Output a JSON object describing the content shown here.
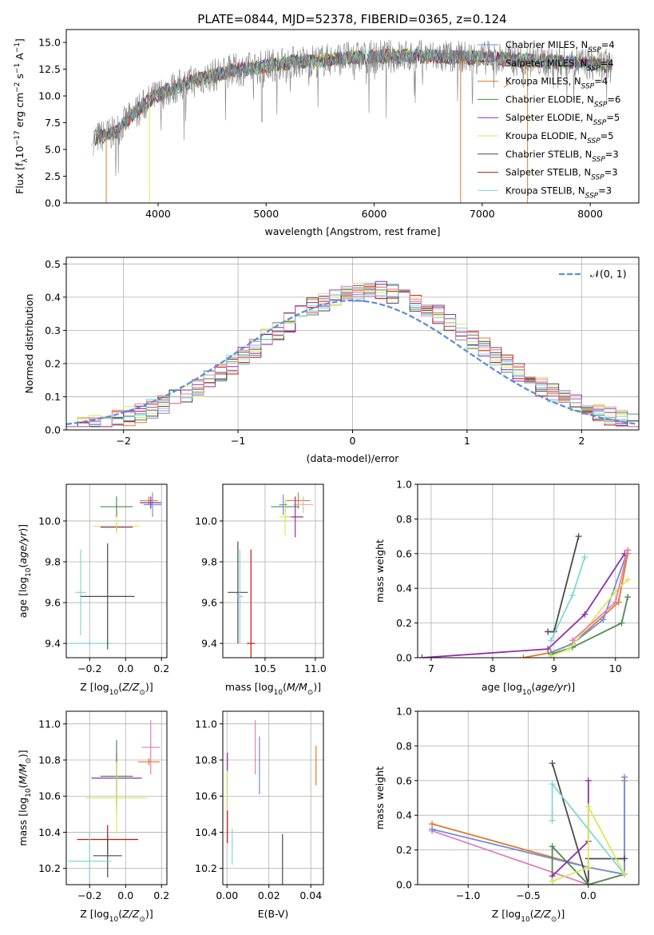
{
  "figure_title": "PLATE=0844, MJD=52378, FIBERID=0365, z=0.124",
  "colors": {
    "Chabrier MILES": "#6f8fd8",
    "Salpeter MILES": "#d7b8c0",
    "Kroupa MILES": "#e07a27",
    "Chabrier ELODIE": "#4f8a4f",
    "Salpeter ELODIE": "#8e2fa8",
    "Kroupa ELODIE": "#dbe85a",
    "Chabrier STELIB": "#4a4a4a",
    "Salpeter STELIB": "#cc1111",
    "Kroupa STELIB": "#7ed8d6",
    "pink": "#e27fb8",
    "normal": "#5b8bd8"
  },
  "chart_data": [
    {
      "id": "spectrum",
      "type": "line",
      "title": "PLATE=0844, MJD=52378, FIBERID=0365, z=0.124",
      "xlabel": "wavelength [Angstrom, rest frame]",
      "ylabel": "Flux [f_λ10^{-17} erg cm^{-2} s^{-1} A^{-1}]",
      "xlim": [
        3150,
        8450
      ],
      "ylim": [
        0,
        16.2
      ],
      "xticks": [
        4000,
        5000,
        6000,
        7000,
        8000
      ],
      "yticks": [
        0.0,
        2.5,
        5.0,
        7.5,
        10.0,
        12.5,
        15.0
      ],
      "legend_position": "top-right",
      "legend": [
        {
          "main": "Chabrier MILES, N",
          "sub": "SSP",
          "tail": "=4"
        },
        {
          "main": "Salpeter MILES, N",
          "sub": "SSP",
          "tail": "=4"
        },
        {
          "main": "Kroupa MILES, N",
          "sub": "SSP",
          "tail": "=4"
        },
        {
          "main": "Chabrier ELODIE, N",
          "sub": "SSP",
          "tail": "=6"
        },
        {
          "main": "Salpeter ELODIE, N",
          "sub": "SSP",
          "tail": "=5"
        },
        {
          "main": "Kroupa ELODIE, N",
          "sub": "SSP",
          "tail": "=5"
        },
        {
          "main": "Chabrier STELIB, N",
          "sub": "SSP",
          "tail": "=3"
        },
        {
          "main": "Salpeter STELIB, N",
          "sub": "SSP",
          "tail": "=3"
        },
        {
          "main": "Kroupa STELIB, N",
          "sub": "SSP",
          "tail": "=3"
        }
      ],
      "continuum": {
        "x": [
          3400,
          3600,
          3800,
          3950,
          4100,
          4300,
          4500,
          4700,
          4900,
          5100,
          5300,
          5500,
          5700,
          5900,
          6100,
          6300,
          6500,
          6700,
          6900,
          7100,
          7300,
          7500,
          7700,
          7900,
          8100,
          8200
        ],
        "y": [
          6.0,
          6.6,
          8.6,
          9.8,
          10.6,
          11.3,
          11.9,
          12.4,
          12.6,
          13.0,
          13.2,
          13.3,
          13.5,
          13.6,
          13.7,
          13.7,
          13.7,
          13.6,
          13.6,
          13.5,
          13.4,
          13.3,
          13.2,
          13.1,
          12.9,
          12.8
        ]
      }
    },
    {
      "id": "residuals",
      "type": "line",
      "xlabel": "(data-model)/error",
      "ylabel": "Normed distribution",
      "xlim": [
        -2.5,
        2.5
      ],
      "ylim": [
        0,
        0.52
      ],
      "xticks": [
        -2,
        -1,
        0,
        1,
        2
      ],
      "yticks": [
        0.0,
        0.1,
        0.2,
        0.3,
        0.4,
        0.5
      ],
      "legend_position": "top-right",
      "legend": [
        {
          "name": "𝒩(0, 1)"
        }
      ],
      "normal_curve": {
        "mu": 0,
        "sigma": 1,
        "peak": 0.39
      }
    },
    {
      "id": "age_vs_Z",
      "type": "scatter",
      "xlabel": "Z [log10(Z/Z⊙)]",
      "ylabel": "age  [log10(age/yr)]",
      "xlim": [
        -0.33,
        0.23
      ],
      "ylim": [
        9.33,
        10.18
      ],
      "xticks": [
        -0.2,
        0.0,
        0.2
      ],
      "yticks": [
        9.4,
        9.6,
        9.8,
        10.0
      ],
      "errorbars": [
        {
          "series": "Kroupa MILES",
          "x": 0.13,
          "xerr": 0.05,
          "y": 10.1,
          "yerr": 0.02
        },
        {
          "series": "Chabrier MILES",
          "x": 0.15,
          "xerr": 0.05,
          "y": 10.08,
          "yerr": 0.06
        },
        {
          "series": "Salpeter ELODIE",
          "x": 0.14,
          "xerr": 0.06,
          "y": 10.09,
          "yerr": 0.03
        },
        {
          "series": "Chabrier ELODIE",
          "x": -0.05,
          "xerr": 0.09,
          "y": 10.07,
          "yerr": 0.05
        },
        {
          "series": "Salpeter ELODIE",
          "x": -0.05,
          "xerr": 0.09,
          "y": 9.97,
          "yerr": 0.02
        },
        {
          "series": "Kroupa ELODIE",
          "x": -0.05,
          "xerr": 0.13,
          "y": 9.975,
          "yerr": 0.04
        },
        {
          "series": "Kroupa STELIB",
          "x": -0.25,
          "xerr": 0.03,
          "y": 9.65,
          "yerr": 0.21
        },
        {
          "series": "Kroupa STELIB",
          "x": -0.2,
          "xerr": 0.12,
          "y": 9.4,
          "yerr": 0.01
        },
        {
          "series": "Chabrier STELIB",
          "x": -0.1,
          "xerr": 0.15,
          "y": 9.63,
          "yerr": 0.26
        }
      ]
    },
    {
      "id": "age_vs_mass",
      "type": "scatter",
      "xlabel": "mass [log10(M/M⊙)]",
      "xlim": [
        10.08,
        11.08
      ],
      "ylim": [
        9.33,
        10.18
      ],
      "xticks": [
        10.5,
        11.0
      ],
      "yticks": [
        9.4,
        9.6,
        9.8,
        10.0
      ],
      "errorbars": [
        {
          "series": "Kroupa MILES",
          "x": 10.83,
          "xerr": 0.12,
          "y": 10.1,
          "yerr": 0.04
        },
        {
          "series": "Salpeter MILES",
          "x": 10.88,
          "xerr": 0.1,
          "y": 10.08,
          "yerr": 0.04
        },
        {
          "series": "Chabrier ELODIE",
          "x": 10.7,
          "xerr": 0.14,
          "y": 10.07,
          "yerr": 0.03
        },
        {
          "series": "Salpeter ELODIE",
          "x": 10.8,
          "xerr": 0.08,
          "y": 10.02,
          "yerr": 0.1
        },
        {
          "series": "Kroupa ELODIE",
          "x": 10.7,
          "xerr": 0.06,
          "y": 10.02,
          "yerr": 0.09
        },
        {
          "series": "Chabrier MILES",
          "x": 10.68,
          "xerr": 0.04,
          "y": 10.08,
          "yerr": 0.05
        },
        {
          "series": "Chabrier STELIB",
          "x": 10.23,
          "xerr": 0.1,
          "y": 9.65,
          "yerr": 0.25
        },
        {
          "series": "Kroupa STELIB",
          "x": 10.25,
          "xerr": 0.03,
          "y": 9.63,
          "yerr": 0.23
        },
        {
          "series": "Salpeter STELIB",
          "x": 10.36,
          "xerr": 0.04,
          "y": 9.4,
          "yerr": 0.46
        }
      ]
    },
    {
      "id": "massweight_vs_age",
      "type": "line",
      "xlabel": "age  [log10(age/yr)]",
      "ylabel": "mass weight",
      "xlim": [
        6.78,
        10.38
      ],
      "ylim": [
        0,
        1.0
      ],
      "xticks": [
        7,
        8,
        9,
        10
      ],
      "yticks": [
        0.0,
        0.2,
        0.4,
        0.6,
        0.8,
        1.0
      ],
      "series": [
        {
          "name": "Salpeter ELODIE",
          "x": [
            6.85,
            8.9,
            9.5,
            10.15
          ],
          "y": [
            0.0,
            0.05,
            0.25,
            0.6
          ]
        },
        {
          "name": "Chabrier STELIB",
          "x": [
            8.9,
            9.0,
            9.4
          ],
          "y": [
            0.15,
            0.15,
            0.7
          ]
        },
        {
          "name": "Kroupa STELIB",
          "x": [
            8.95,
            9.3,
            9.5
          ],
          "y": [
            0.1,
            0.36,
            0.58
          ]
        },
        {
          "name": "Kroupa MILES",
          "x": [
            8.5,
            8.95,
            9.3,
            10.05,
            10.2
          ],
          "y": [
            0.0,
            0.03,
            0.08,
            0.32,
            0.6
          ]
        },
        {
          "name": "Chabrier MILES",
          "x": [
            8.95,
            9.3,
            9.8,
            10.2
          ],
          "y": [
            0.03,
            0.08,
            0.22,
            0.62
          ]
        },
        {
          "name": "Chabrier ELODIE",
          "x": [
            8.95,
            9.3,
            10.1,
            10.2
          ],
          "y": [
            0.02,
            0.06,
            0.2,
            0.35
          ]
        },
        {
          "name": "Kroupa ELODIE",
          "x": [
            8.95,
            9.25,
            10.0,
            10.2
          ],
          "y": [
            0.01,
            0.05,
            0.38,
            0.45
          ]
        },
        {
          "name": "pink",
          "x": [
            9.3,
            10.0,
            10.2
          ],
          "y": [
            0.1,
            0.32,
            0.62
          ]
        }
      ]
    },
    {
      "id": "mass_vs_Z",
      "type": "scatter",
      "xlabel": "Z [log10(Z/Z⊙)]",
      "ylabel": "mass [log10(M/M⊙)]",
      "xlim": [
        -0.33,
        0.23
      ],
      "ylim": [
        10.11,
        11.07
      ],
      "xticks": [
        -0.2,
        0.0,
        0.2
      ],
      "yticks": [
        10.2,
        10.4,
        10.6,
        10.8,
        11.0
      ],
      "errorbars": [
        {
          "series": "pink",
          "x": 0.14,
          "xerr": 0.05,
          "y": 10.87,
          "yerr": 0.15
        },
        {
          "series": "Kroupa MILES",
          "x": 0.13,
          "xerr": 0.06,
          "y": 10.79,
          "yerr": 0.02
        },
        {
          "series": "Salpeter ELODIE",
          "x": -0.05,
          "xerr": 0.14,
          "y": 10.7,
          "yerr": 0.14
        },
        {
          "series": "Chabrier ELODIE",
          "x": -0.05,
          "xerr": 0.09,
          "y": 10.71,
          "yerr": 0.2
        },
        {
          "series": "Kroupa ELODIE",
          "x": -0.05,
          "xerr": 0.17,
          "y": 10.59,
          "yerr": 0.2
        },
        {
          "series": "Salpeter STELIB",
          "x": -0.1,
          "xerr": 0.17,
          "y": 10.36,
          "yerr": 0.08
        },
        {
          "series": "Chabrier STELIB",
          "x": -0.1,
          "xerr": 0.08,
          "y": 10.27,
          "yerr": 0.12
        },
        {
          "series": "Kroupa STELIB",
          "x": -0.2,
          "xerr": 0.12,
          "y": 10.24,
          "yerr": 0.16
        }
      ]
    },
    {
      "id": "mass_vs_ebv",
      "type": "scatter",
      "xlabel": "E(B-V)",
      "xlim": [
        -0.002,
        0.046
      ],
      "ylim": [
        10.11,
        11.07
      ],
      "xticks": [
        0.0,
        0.02,
        0.04
      ],
      "yticks": [
        10.2,
        10.4,
        10.6,
        10.8,
        11.0
      ],
      "errorbars": [
        {
          "series": "pink",
          "x": 0.0135,
          "y": 10.87,
          "yerr": 0.15
        },
        {
          "series": "Chabrier MILES",
          "x": 0.0155,
          "y": 10.77,
          "yerr": 0.16
        },
        {
          "series": "Kroupa MILES",
          "x": 0.0425,
          "y": 10.77,
          "yerr": 0.11
        },
        {
          "series": "Salpeter ELODIE",
          "x": 0.0002,
          "y": 10.79,
          "yerr": 0.05
        },
        {
          "series": "Kroupa ELODIE",
          "x": 0.0002,
          "y": 10.62,
          "yerr": 0.12
        },
        {
          "series": "Salpeter STELIB",
          "x": 0.0002,
          "y": 10.43,
          "yerr": 0.09
        },
        {
          "series": "Kroupa STELIB",
          "x": 0.0025,
          "y": 10.32,
          "yerr": 0.1
        },
        {
          "series": "Chabrier STELIB",
          "x": 0.0265,
          "y": 10.25,
          "yerr": 0.14
        }
      ]
    },
    {
      "id": "massweight_vs_Z",
      "type": "line",
      "xlabel": "Z [log10(Z/Z⊙)]",
      "ylabel": "mass weight",
      "xlim": [
        -1.42,
        0.42
      ],
      "ylim": [
        0,
        1.0
      ],
      "xticks": [
        -1.0,
        -0.5,
        0.0
      ],
      "yticks": [
        0.0,
        0.2,
        0.4,
        0.6,
        0.8,
        1.0
      ],
      "series": [
        {
          "name": "Kroupa MILES",
          "x": [
            -1.3,
            0.0,
            0.3,
            0.3
          ],
          "y": [
            0.35,
            0.1,
            0.06,
            0.6
          ]
        },
        {
          "name": "pink",
          "x": [
            -1.3,
            0.0,
            0.3,
            0.3
          ],
          "y": [
            0.31,
            0.0,
            0.06,
            0.62
          ]
        },
        {
          "name": "Chabrier MILES",
          "x": [
            -1.3,
            0.0,
            0.3,
            0.3
          ],
          "y": [
            0.32,
            0.1,
            0.06,
            0.62
          ]
        },
        {
          "name": "Chabrier STELIB",
          "x": [
            -0.3,
            0.0,
            0.0,
            0.3
          ],
          "y": [
            0.7,
            0.0,
            0.15,
            0.15
          ]
        },
        {
          "name": "Kroupa STELIB",
          "x": [
            -0.3,
            -0.3,
            0.3,
            0.3
          ],
          "y": [
            0.37,
            0.58,
            0.06,
            0.06
          ]
        },
        {
          "name": "Chabrier ELODIE",
          "x": [
            -0.3,
            -0.3,
            0.0,
            0.3
          ],
          "y": [
            0.02,
            0.22,
            0.0,
            0.06
          ]
        },
        {
          "name": "Salpeter ELODIE",
          "x": [
            -0.3,
            0.0,
            0.0
          ],
          "y": [
            0.05,
            0.25,
            0.6
          ]
        },
        {
          "name": "Kroupa ELODIE",
          "x": [
            -0.3,
            0.0,
            0.0,
            0.3
          ],
          "y": [
            0.02,
            0.1,
            0.45,
            0.06
          ]
        }
      ]
    }
  ]
}
